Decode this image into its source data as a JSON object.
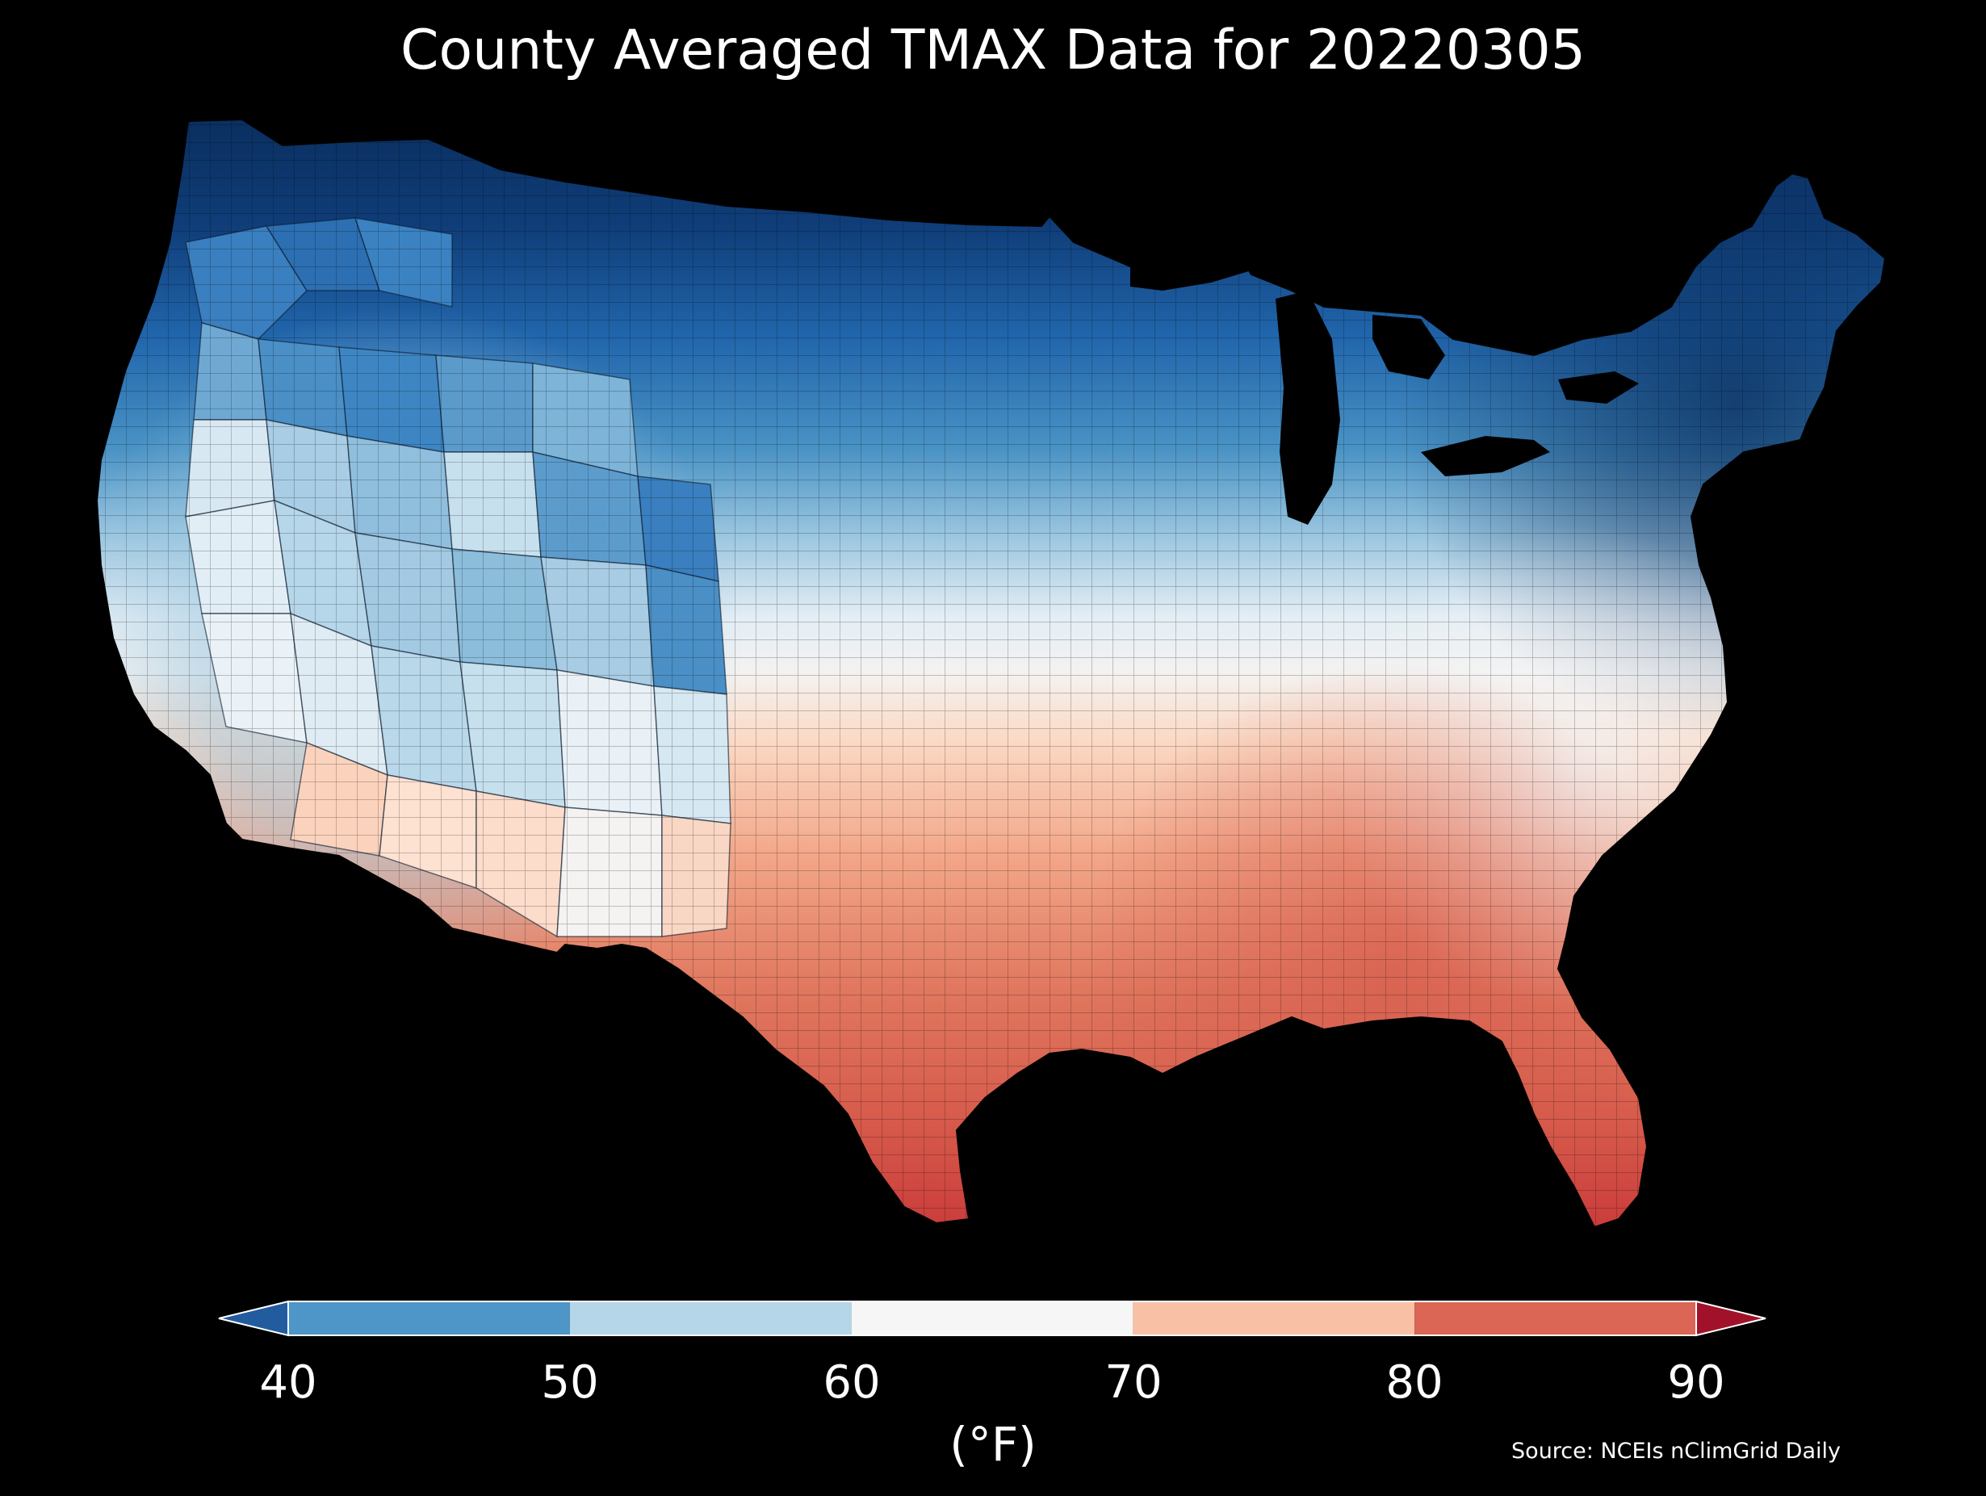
{
  "title": "County Averaged TMAX Data for 20220305",
  "colorbar": {
    "ticks": [
      "40",
      "50",
      "60",
      "70",
      "80",
      "90"
    ],
    "unit": "(°F)",
    "min": 40,
    "max": 90,
    "bins": [
      {
        "from": 40,
        "to": 50,
        "color": "#4d96c7"
      },
      {
        "from": 50,
        "to": 60,
        "color": "#b5d5e8"
      },
      {
        "from": 60,
        "to": 70,
        "color": "#f6f6f6"
      },
      {
        "from": 70,
        "to": 80,
        "color": "#f8c1a6"
      },
      {
        "from": 80,
        "to": 90,
        "color": "#db6656"
      }
    ],
    "under_color": "#225c9e",
    "over_color": "#a1122a"
  },
  "source": "Source: NCEIs nClimGrid Daily",
  "colors": {
    "background": "#000000",
    "text": "#ffffff",
    "coldest": "#0a2e5e",
    "warmest": "#c93a3a"
  }
}
